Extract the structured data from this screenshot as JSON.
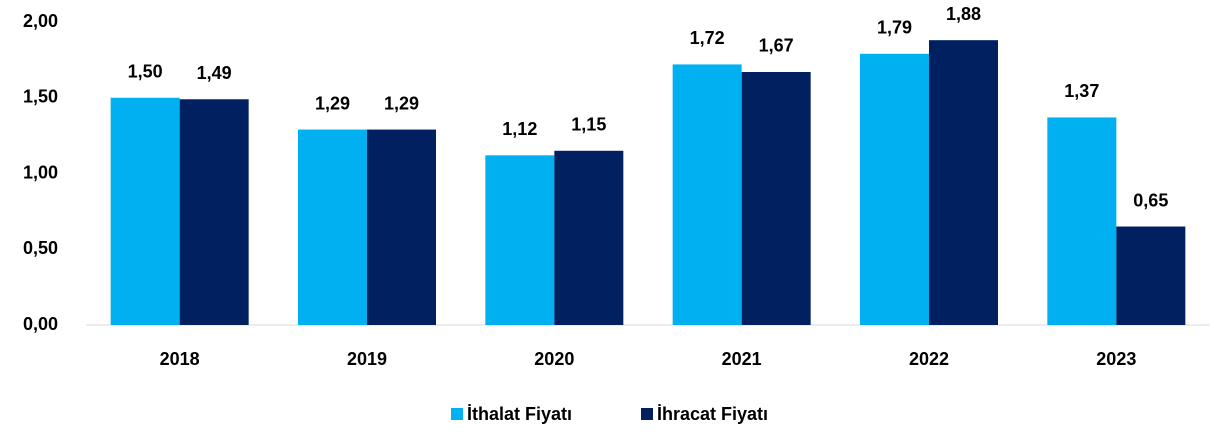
{
  "chart_data": {
    "type": "bar",
    "categories": [
      "2018",
      "2019",
      "2020",
      "2021",
      "2022",
      "2023"
    ],
    "series": [
      {
        "name": "İthalat Fiyatı",
        "color": "#00b0f0",
        "values": [
          1.5,
          1.29,
          1.12,
          1.72,
          1.79,
          1.37
        ],
        "value_labels": [
          "1,50",
          "1,29",
          "1,12",
          "1,72",
          "1,79",
          "1,37"
        ]
      },
      {
        "name": "İhracat Fiyatı",
        "color": "#002060",
        "values": [
          1.49,
          1.29,
          1.15,
          1.67,
          1.88,
          0.65
        ],
        "value_labels": [
          "1,49",
          "1,29",
          "1,15",
          "1,67",
          "1,88",
          "0,65"
        ]
      }
    ],
    "ylim": [
      0,
      2
    ],
    "yticks": [
      {
        "value": 0,
        "label": "0,00"
      },
      {
        "value": 0.5,
        "label": "0,50"
      },
      {
        "value": 1,
        "label": "1,00"
      },
      {
        "value": 1.5,
        "label": "1,50"
      },
      {
        "value": 2,
        "label": "2,00"
      }
    ],
    "grid": false,
    "legend": "bottom"
  }
}
